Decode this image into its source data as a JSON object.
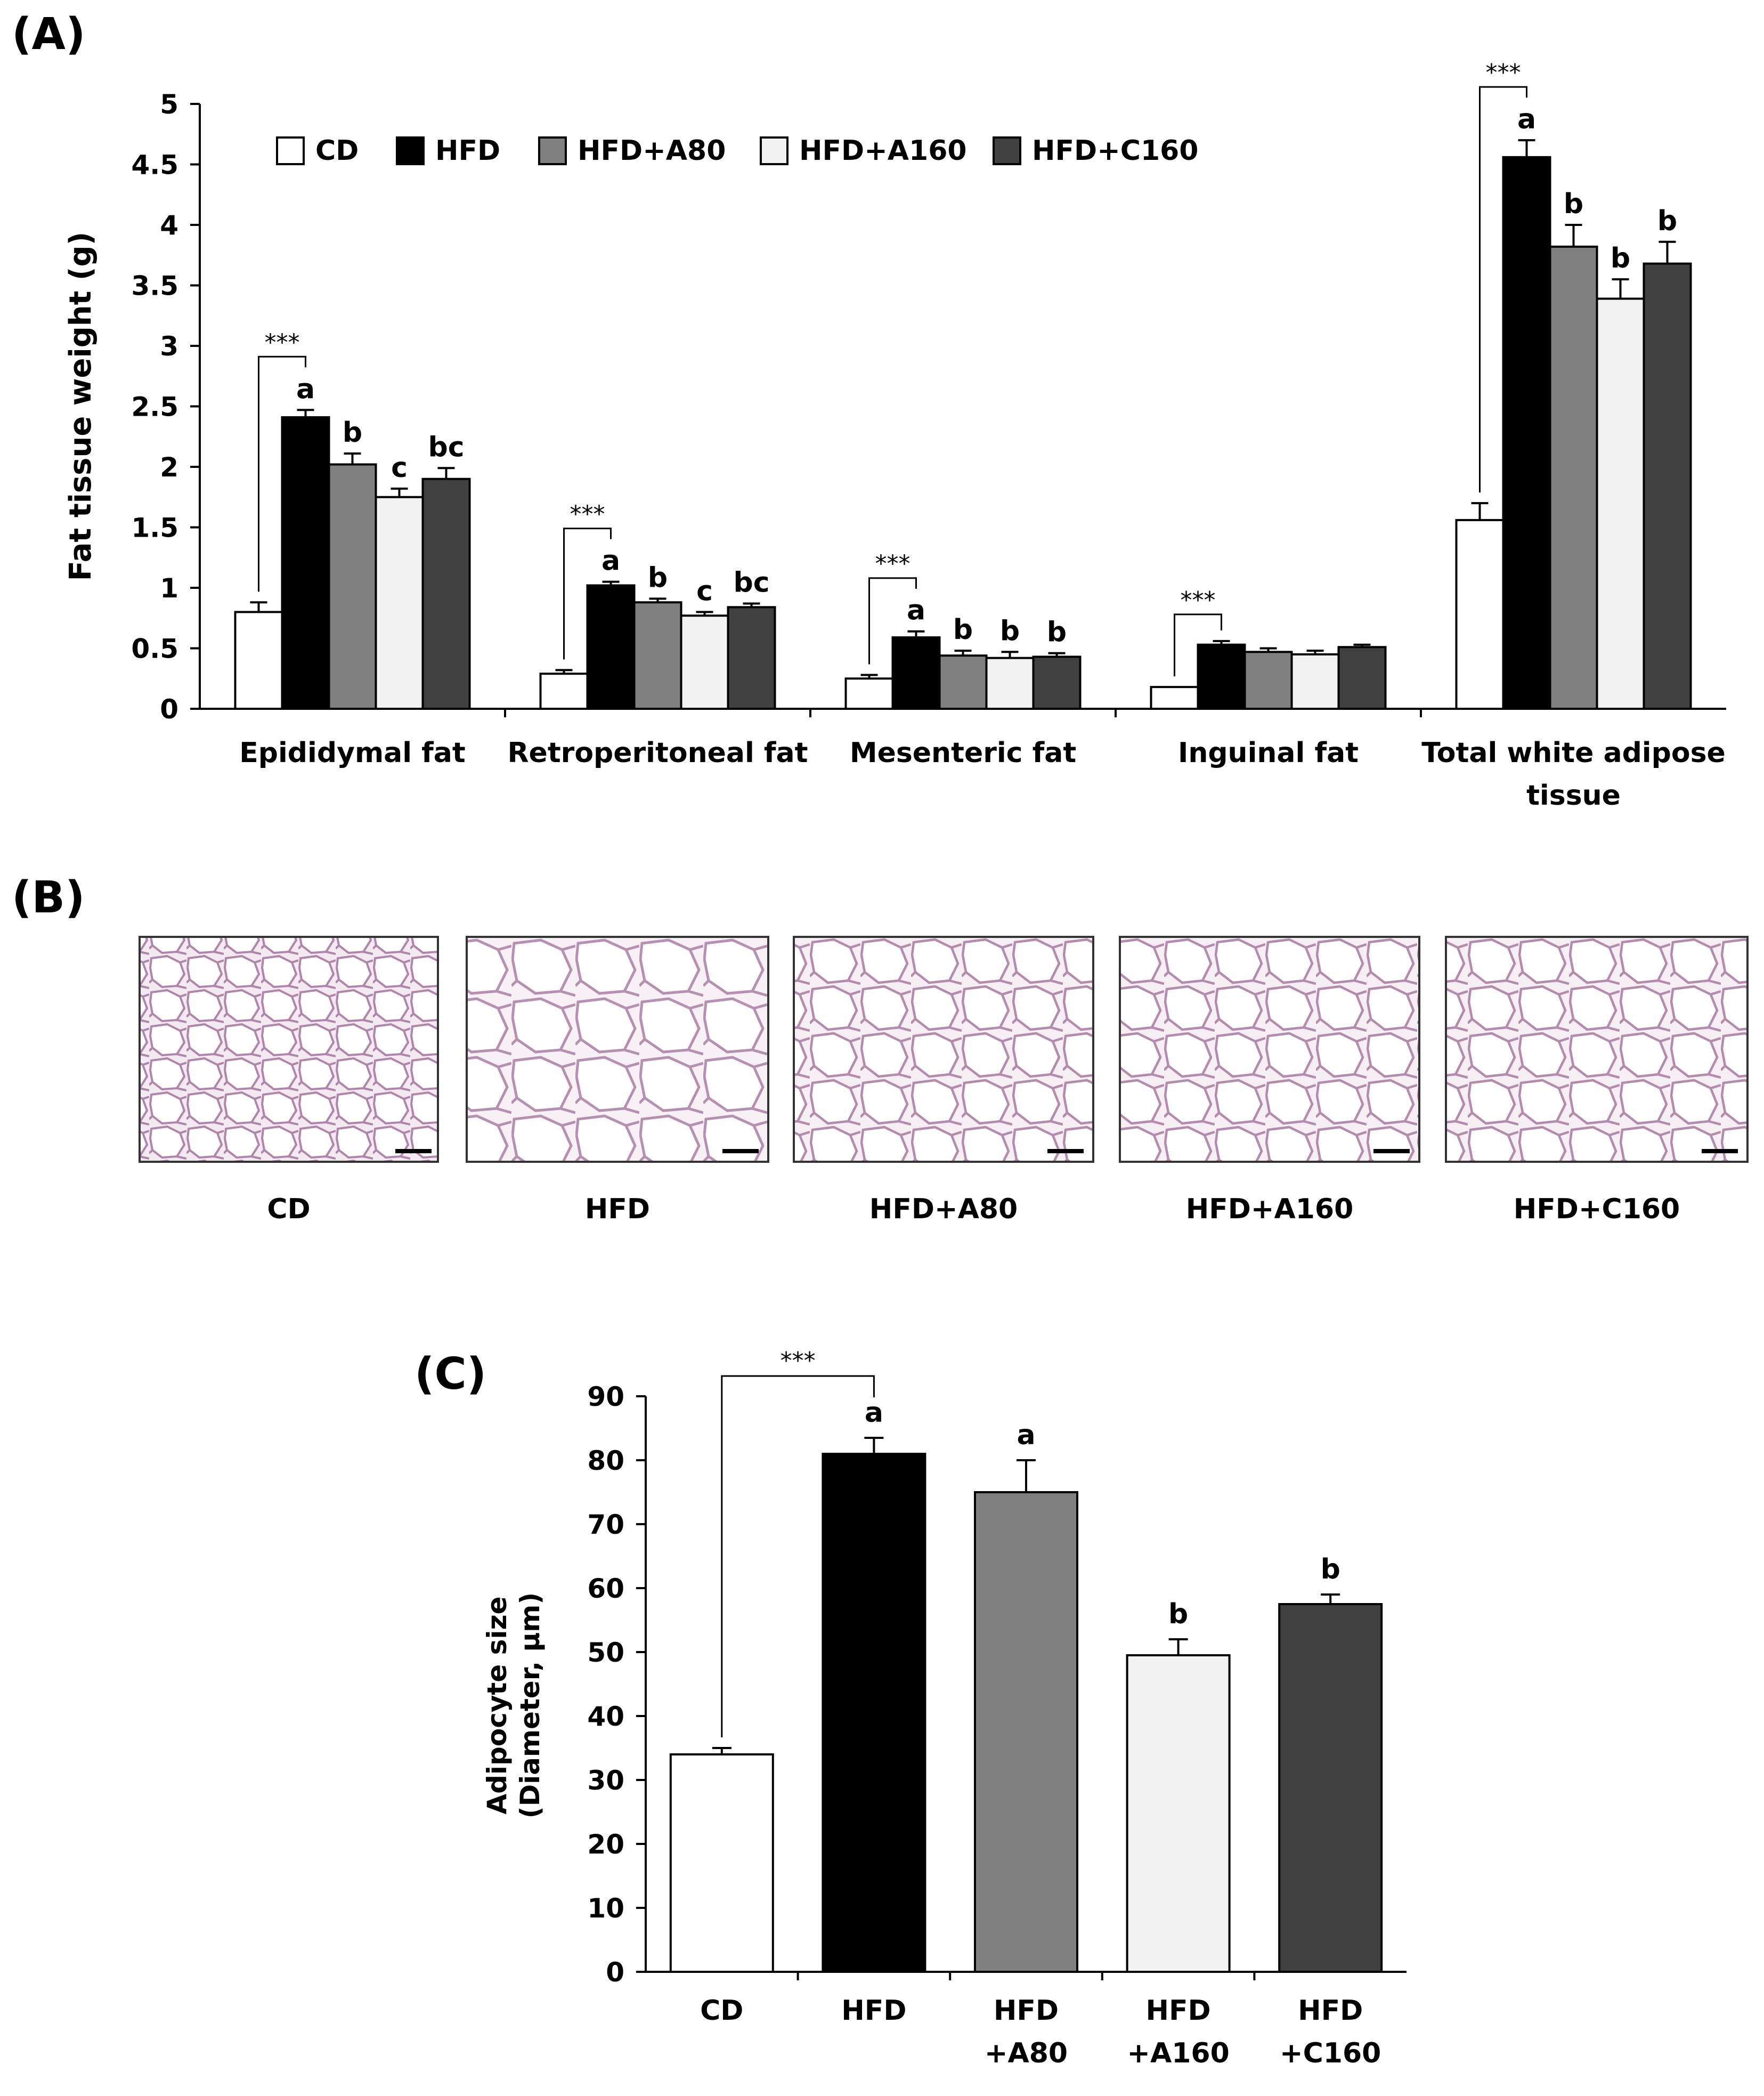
{
  "panels": {
    "a_label": "(A)",
    "b_label": "(B)",
    "c_label": "(C)"
  },
  "colors": {
    "CD": "#ffffff",
    "HFD": "#000000",
    "HFD+A80": "#808080",
    "HFD+A160": "#f2f2f2",
    "HFD+C160": "#404040"
  },
  "chart_data": [
    {
      "id": "A",
      "type": "bar",
      "ylabel": "Fat tissue weight (g)",
      "xlabel": "",
      "ylim": [
        0,
        5
      ],
      "yticks": [
        0,
        0.5,
        1,
        1.5,
        2,
        2.5,
        3,
        3.5,
        4,
        4.5,
        5
      ],
      "ytick_labels": [
        "0",
        "0.5",
        "1",
        "1.5",
        "2",
        "2.5",
        "3",
        "3.5",
        "4",
        "4.5",
        "5"
      ],
      "legend": [
        "CD",
        "HFD",
        "HFD+A80",
        "HFD+A160",
        "HFD+C160"
      ],
      "legend_position": "top-left",
      "categories": [
        [
          "Epididymal fat"
        ],
        [
          "Retroperitoneal fat"
        ],
        [
          "Mesenteric fat"
        ],
        [
          "Inguinal fat"
        ],
        [
          "Total white adipose",
          "tissue"
        ]
      ],
      "series": [
        {
          "name": "CD",
          "values": [
            0.8,
            0.29,
            0.25,
            0.18,
            1.56
          ],
          "errors": [
            0.08,
            0.03,
            0.03,
            0.0,
            0.14
          ],
          "letters": [
            "",
            "",
            "",
            "",
            ""
          ]
        },
        {
          "name": "HFD",
          "values": [
            2.41,
            1.02,
            0.59,
            0.53,
            4.56
          ],
          "errors": [
            0.06,
            0.03,
            0.05,
            0.03,
            0.14
          ],
          "letters": [
            "a",
            "a",
            "a",
            "",
            "a"
          ]
        },
        {
          "name": "HFD+A80",
          "values": [
            2.02,
            0.88,
            0.44,
            0.47,
            3.82
          ],
          "errors": [
            0.09,
            0.03,
            0.04,
            0.03,
            0.18
          ],
          "letters": [
            "b",
            "b",
            "b",
            "",
            "b"
          ]
        },
        {
          "name": "HFD+A160",
          "values": [
            1.75,
            0.77,
            0.42,
            0.45,
            3.39
          ],
          "errors": [
            0.07,
            0.03,
            0.05,
            0.03,
            0.16
          ],
          "letters": [
            "c",
            "c",
            "b",
            "",
            "b"
          ]
        },
        {
          "name": "HFD+C160",
          "values": [
            1.9,
            0.84,
            0.43,
            0.51,
            3.68
          ],
          "errors": [
            0.09,
            0.03,
            0.03,
            0.02,
            0.18
          ],
          "letters": [
            "bc",
            "bc",
            "b",
            "",
            "b"
          ]
        }
      ],
      "annotations": [
        "***",
        "***",
        "***",
        "***",
        "***"
      ]
    },
    {
      "id": "C",
      "type": "bar",
      "ylabel_lines": [
        "Adipocyte size",
        "(Diameter, μm)"
      ],
      "xlabel": "",
      "ylim": [
        0,
        90
      ],
      "yticks": [
        0,
        10,
        20,
        30,
        40,
        50,
        60,
        70,
        80,
        90
      ],
      "ytick_labels": [
        "0",
        "10",
        "20",
        "30",
        "40",
        "50",
        "60",
        "70",
        "80",
        "90"
      ],
      "categories": [
        [
          "CD"
        ],
        [
          "HFD"
        ],
        [
          "HFD",
          "+A80"
        ],
        [
          "HFD",
          "+A160"
        ],
        [
          "HFD",
          "+C160"
        ]
      ],
      "series_names": [
        "CD",
        "HFD",
        "HFD+A80",
        "HFD+A160",
        "HFD+C160"
      ],
      "values": [
        34,
        81,
        75,
        49.5,
        57.5
      ],
      "errors": [
        1,
        2.5,
        5,
        2.5,
        1.5
      ],
      "letters": [
        "",
        "a",
        "a",
        "b",
        "b"
      ],
      "annotation": "***"
    }
  ],
  "images": {
    "captions": [
      "CD",
      "HFD",
      "HFD+A80",
      "HFD+A160",
      "HFD+C160"
    ]
  }
}
